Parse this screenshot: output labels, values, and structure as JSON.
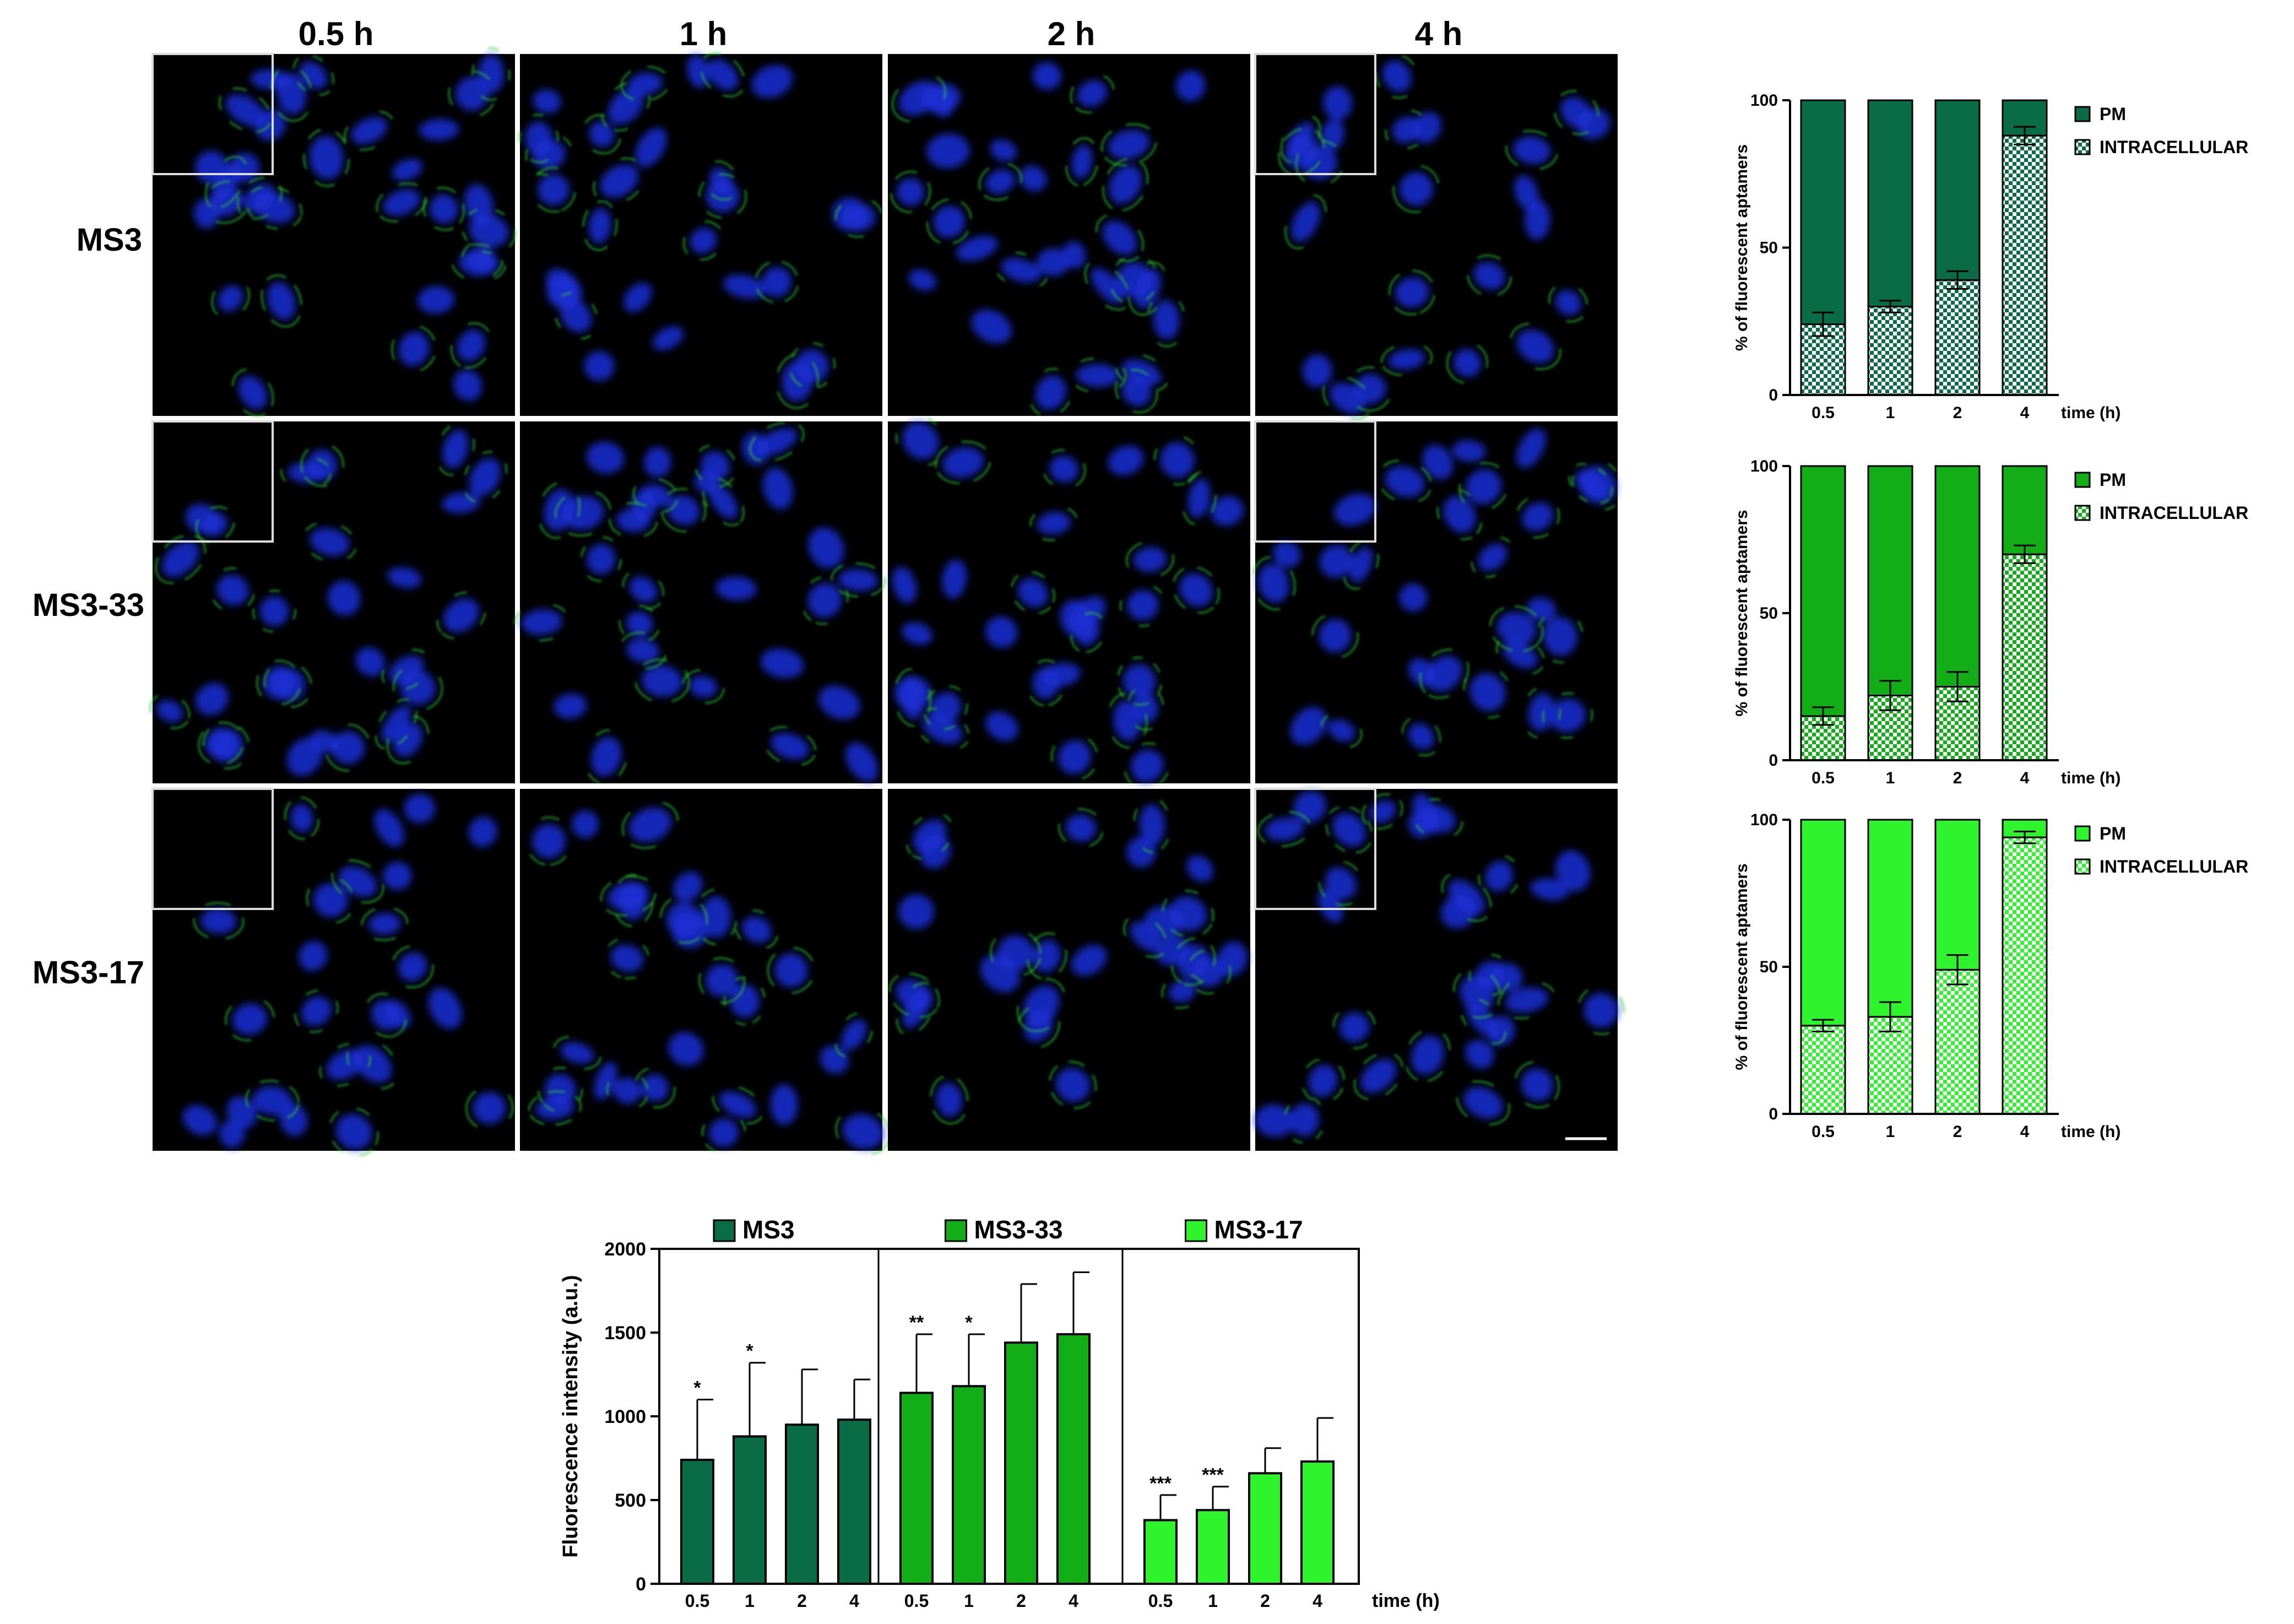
{
  "micrographs": {
    "column_labels": [
      "0.5 h",
      "1 h",
      "2 h",
      "4 h"
    ],
    "row_labels": [
      "MS3",
      "MS3-33",
      "MS3-17"
    ]
  },
  "colors": {
    "MS3": "#0a6b47",
    "MS3-33": "#13ad18",
    "MS3-17": "#2ff32c",
    "nucleus": "#1b2fd6",
    "membrane": "#33d633",
    "background": "#000000"
  },
  "chart_data": [
    {
      "type": "bar",
      "stacked": true,
      "panel": "MS3",
      "categories": [
        "0.5",
        "1",
        "2",
        "4"
      ],
      "xlabel": "time (h)",
      "ylabel": "% of fluorescent aptamers",
      "ylim": [
        0,
        100
      ],
      "yticks": [
        "0",
        "50",
        "100"
      ],
      "legend_position": "right",
      "series": [
        {
          "name": "INTRACELLULAR",
          "values": [
            24,
            30,
            39,
            88
          ],
          "errors": [
            4,
            2,
            3,
            3
          ],
          "pattern": "checker"
        },
        {
          "name": "PM",
          "values": [
            76,
            70,
            61,
            12
          ],
          "pattern": "solid"
        }
      ]
    },
    {
      "type": "bar",
      "stacked": true,
      "panel": "MS3-33",
      "categories": [
        "0.5",
        "1",
        "2",
        "4"
      ],
      "xlabel": "time (h)",
      "ylabel": "% of fluorescent aptamers",
      "ylim": [
        0,
        100
      ],
      "yticks": [
        "0",
        "50",
        "100"
      ],
      "legend_position": "right",
      "series": [
        {
          "name": "INTRACELLULAR",
          "values": [
            15,
            22,
            25,
            70
          ],
          "errors": [
            3,
            5,
            5,
            3
          ],
          "pattern": "checker"
        },
        {
          "name": "PM",
          "values": [
            85,
            78,
            75,
            30
          ],
          "pattern": "solid"
        }
      ]
    },
    {
      "type": "bar",
      "stacked": true,
      "panel": "MS3-17",
      "categories": [
        "0.5",
        "1",
        "2",
        "4"
      ],
      "xlabel": "time (h)",
      "ylabel": "% of fluorescent aptamers",
      "ylim": [
        0,
        100
      ],
      "yticks": [
        "0",
        "50",
        "100"
      ],
      "legend_position": "right",
      "series": [
        {
          "name": "INTRACELLULAR",
          "values": [
            30,
            33,
            49,
            94
          ],
          "errors": [
            2,
            5,
            5,
            2
          ],
          "pattern": "checker"
        },
        {
          "name": "PM",
          "values": [
            70,
            67,
            51,
            6
          ],
          "pattern": "solid"
        }
      ]
    },
    {
      "type": "bar",
      "panel": "fluorescence",
      "categories": [
        "0.5",
        "1",
        "2",
        "4"
      ],
      "xlabel": "time (h)",
      "ylabel": "Fluorescence intensity (a.u.)",
      "ylim": [
        0,
        2000
      ],
      "yticks": [
        "0",
        "500",
        "1000",
        "1500",
        "2000"
      ],
      "legend_position": "top",
      "series": [
        {
          "name": "MS3",
          "values": [
            740,
            880,
            950,
            980
          ],
          "errors": [
            360,
            440,
            330,
            240
          ],
          "significance": [
            "*",
            "*",
            "",
            ""
          ]
        },
        {
          "name": "MS3-33",
          "values": [
            1140,
            1180,
            1440,
            1490
          ],
          "errors": [
            350,
            310,
            350,
            370
          ],
          "significance": [
            "**",
            "*",
            "",
            ""
          ]
        },
        {
          "name": "MS3-17",
          "values": [
            380,
            440,
            660,
            730
          ],
          "errors": [
            150,
            140,
            150,
            260
          ],
          "significance": [
            "***",
            "***",
            "",
            ""
          ]
        }
      ]
    }
  ]
}
